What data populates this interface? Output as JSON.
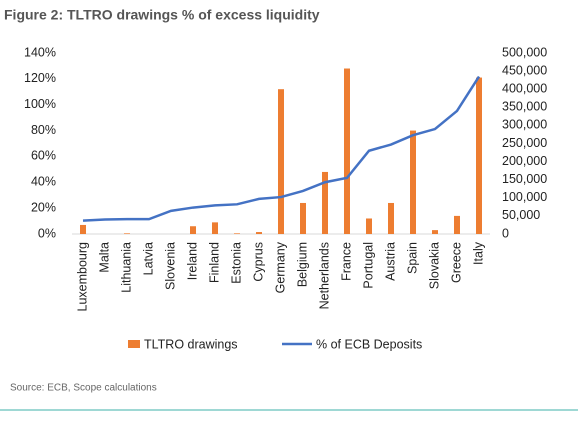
{
  "chart_data": {
    "type": "bar",
    "title": "Figure 2: TLTRO drawings % of excess liquidity",
    "source": "Source: ECB, Scope calculations",
    "categories": [
      "Luxembourg",
      "Malta",
      "Lithuania",
      "Latvia",
      "Slovenia",
      "Ireland",
      "Finland",
      "Estonia",
      "Cyprus",
      "Germany",
      "Belgium",
      "Netherlands",
      "France",
      "Portugal",
      "Austria",
      "Spain",
      "Slovakia",
      "Greece",
      "Italy"
    ],
    "series": [
      {
        "name": "TLTRO drawings",
        "color": "#ed7d31",
        "type": "bar",
        "values": [
          7,
          0,
          0.5,
          0,
          0,
          6,
          9,
          0.5,
          1.5,
          112,
          24,
          48,
          128,
          12,
          24,
          80,
          3,
          14,
          121
        ]
      },
      {
        "name": "% of ECB Deposits",
        "color": "#4472c4",
        "type": "line",
        "axis": "y2",
        "values": [
          37000,
          40000,
          41000,
          41000,
          64000,
          73000,
          79000,
          82000,
          97000,
          102000,
          119000,
          143000,
          155000,
          230000,
          247000,
          273000,
          290000,
          340000,
          435000
        ]
      }
    ],
    "ylim": [
      0,
      140
    ],
    "yticks": [
      {
        "value": 0,
        "label": "0%"
      },
      {
        "value": 20,
        "label": "20%"
      },
      {
        "value": 40,
        "label": "40%"
      },
      {
        "value": 60,
        "label": "60%"
      },
      {
        "value": 80,
        "label": "80%"
      },
      {
        "value": 100,
        "label": "100%"
      },
      {
        "value": 120,
        "label": "120%"
      },
      {
        "value": 140,
        "label": "140%"
      }
    ],
    "y2lim": [
      0,
      500000
    ],
    "y2ticks": [
      0,
      {
        "value": 50000,
        "label": "50,000"
      },
      {
        "value": 100000,
        "label": "100,000"
      },
      {
        "value": 150000,
        "label": "150,000"
      },
      {
        "value": 200000,
        "label": "200,000"
      },
      {
        "value": 250000,
        "label": "250,000"
      },
      {
        "value": 300000,
        "label": "300,000"
      },
      {
        "value": 350000,
        "label": "350,000"
      },
      {
        "value": 400000,
        "label": "400,000"
      },
      {
        "value": 450000,
        "label": "450,000"
      },
      {
        "value": 500000,
        "label": "500,000"
      }
    ],
    "legend": "bottom"
  }
}
